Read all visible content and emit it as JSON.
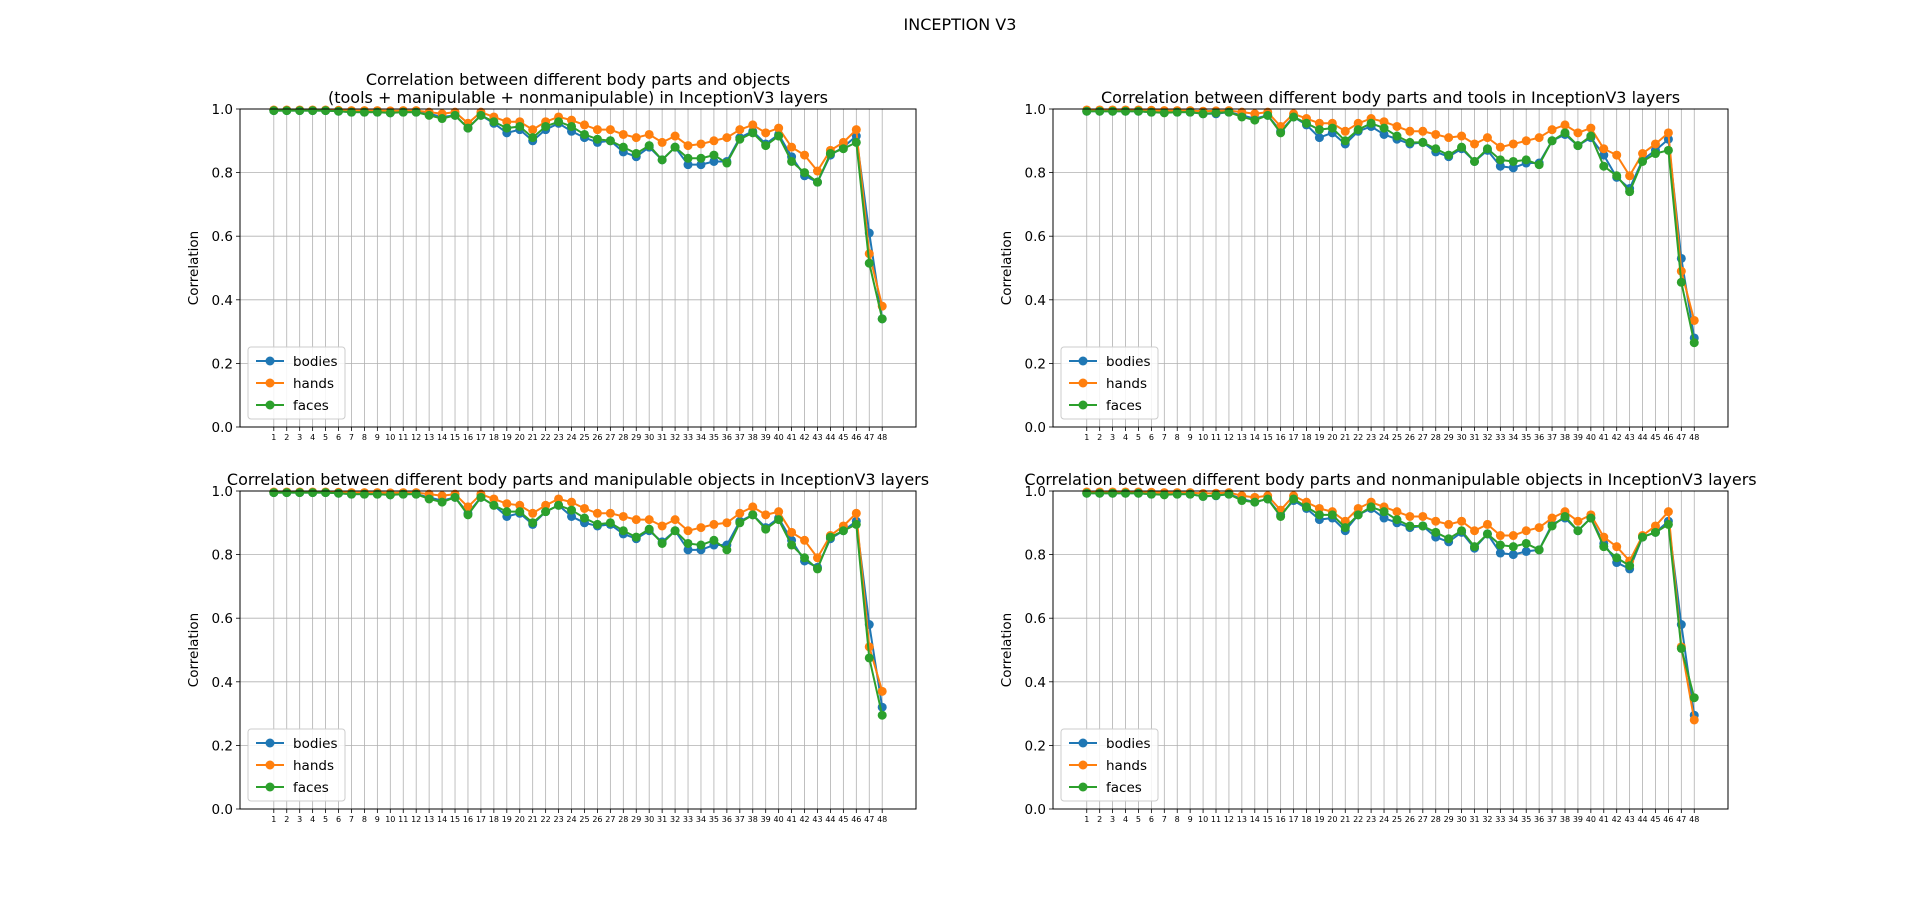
{
  "figure": {
    "title": "INCEPTION V3"
  },
  "chart_data": [
    {
      "type": "line",
      "title": "Correlation between different body parts and objects\n(tools + manipulable + nonmanipulable) in InceptionV3 layers",
      "xlabel": "",
      "ylabel": "Correlation",
      "ylim": [
        0,
        1
      ],
      "yticks": [
        "0.0",
        "0.2",
        "0.4",
        "0.6",
        "0.8",
        "1.0"
      ],
      "x": [
        "1",
        "2",
        "3",
        "4",
        "5",
        "6",
        "7",
        "8",
        "9",
        "10",
        "11",
        "12",
        "13",
        "14",
        "15",
        "16",
        "17",
        "18",
        "19",
        "20",
        "21",
        "22",
        "23",
        "24",
        "25",
        "26",
        "27",
        "28",
        "29",
        "30",
        "31",
        "32",
        "33",
        "34",
        "35",
        "36",
        "37",
        "38",
        "39",
        "40",
        "41",
        "42",
        "43",
        "44",
        "45",
        "46",
        "47",
        "48"
      ],
      "grid": true,
      "legend": "lower left",
      "series": [
        {
          "name": "bodies",
          "color": "#1f77b4",
          "values": [
            0.995,
            0.995,
            0.995,
            0.995,
            0.995,
            0.993,
            0.99,
            0.99,
            0.99,
            0.988,
            0.99,
            0.99,
            0.985,
            0.975,
            0.98,
            0.94,
            0.98,
            0.955,
            0.925,
            0.935,
            0.9,
            0.935,
            0.955,
            0.93,
            0.91,
            0.895,
            0.9,
            0.865,
            0.85,
            0.88,
            0.84,
            0.88,
            0.825,
            0.825,
            0.835,
            0.835,
            0.91,
            0.93,
            0.89,
            0.92,
            0.85,
            0.79,
            0.77,
            0.855,
            0.88,
            0.915,
            0.61,
            0.34
          ]
        },
        {
          "name": "hands",
          "color": "#ff7f0e",
          "values": [
            0.997,
            0.997,
            0.997,
            0.997,
            0.997,
            0.996,
            0.995,
            0.995,
            0.995,
            0.994,
            0.995,
            0.995,
            0.99,
            0.985,
            0.99,
            0.955,
            0.99,
            0.975,
            0.96,
            0.96,
            0.935,
            0.96,
            0.975,
            0.965,
            0.95,
            0.935,
            0.935,
            0.92,
            0.91,
            0.92,
            0.895,
            0.915,
            0.885,
            0.89,
            0.9,
            0.91,
            0.935,
            0.95,
            0.925,
            0.94,
            0.88,
            0.855,
            0.805,
            0.87,
            0.895,
            0.935,
            0.545,
            0.38
          ]
        },
        {
          "name": "faces",
          "color": "#2ca02c",
          "values": [
            0.995,
            0.995,
            0.995,
            0.995,
            0.995,
            0.993,
            0.99,
            0.99,
            0.99,
            0.988,
            0.99,
            0.99,
            0.98,
            0.97,
            0.98,
            0.94,
            0.98,
            0.96,
            0.94,
            0.945,
            0.91,
            0.945,
            0.96,
            0.945,
            0.92,
            0.905,
            0.9,
            0.88,
            0.86,
            0.885,
            0.84,
            0.88,
            0.845,
            0.845,
            0.855,
            0.83,
            0.905,
            0.925,
            0.885,
            0.915,
            0.835,
            0.8,
            0.77,
            0.86,
            0.875,
            0.895,
            0.515,
            0.34
          ]
        }
      ]
    },
    {
      "type": "line",
      "title": "Correlation between different body parts and tools in InceptionV3 layers",
      "xlabel": "",
      "ylabel": "Correlation",
      "ylim": [
        0,
        1
      ],
      "yticks": [
        "0.0",
        "0.2",
        "0.4",
        "0.6",
        "0.8",
        "1.0"
      ],
      "x": [
        "1",
        "2",
        "3",
        "4",
        "5",
        "6",
        "7",
        "8",
        "9",
        "10",
        "11",
        "12",
        "13",
        "14",
        "15",
        "16",
        "17",
        "18",
        "19",
        "20",
        "21",
        "22",
        "23",
        "24",
        "25",
        "26",
        "27",
        "28",
        "29",
        "30",
        "31",
        "32",
        "33",
        "34",
        "35",
        "36",
        "37",
        "38",
        "39",
        "40",
        "41",
        "42",
        "43",
        "44",
        "45",
        "46",
        "47",
        "48"
      ],
      "grid": true,
      "legend": "lower left",
      "series": [
        {
          "name": "bodies",
          "color": "#1f77b4",
          "values": [
            0.993,
            0.993,
            0.993,
            0.993,
            0.993,
            0.99,
            0.99,
            0.99,
            0.99,
            0.985,
            0.985,
            0.99,
            0.98,
            0.97,
            0.98,
            0.93,
            0.975,
            0.95,
            0.91,
            0.925,
            0.89,
            0.93,
            0.945,
            0.92,
            0.905,
            0.89,
            0.895,
            0.865,
            0.85,
            0.875,
            0.835,
            0.87,
            0.82,
            0.815,
            0.83,
            0.83,
            0.9,
            0.92,
            0.885,
            0.91,
            0.855,
            0.785,
            0.75,
            0.84,
            0.87,
            0.905,
            0.53,
            0.28
          ]
        },
        {
          "name": "hands",
          "color": "#ff7f0e",
          "values": [
            0.997,
            0.997,
            0.997,
            0.997,
            0.997,
            0.996,
            0.995,
            0.995,
            0.995,
            0.993,
            0.994,
            0.995,
            0.99,
            0.985,
            0.99,
            0.945,
            0.985,
            0.97,
            0.955,
            0.955,
            0.93,
            0.955,
            0.97,
            0.96,
            0.945,
            0.93,
            0.93,
            0.92,
            0.91,
            0.915,
            0.89,
            0.91,
            0.88,
            0.89,
            0.9,
            0.91,
            0.935,
            0.95,
            0.925,
            0.94,
            0.875,
            0.855,
            0.79,
            0.86,
            0.89,
            0.925,
            0.49,
            0.335
          ]
        },
        {
          "name": "faces",
          "color": "#2ca02c",
          "values": [
            0.993,
            0.993,
            0.993,
            0.993,
            0.993,
            0.99,
            0.988,
            0.99,
            0.99,
            0.985,
            0.988,
            0.99,
            0.975,
            0.965,
            0.98,
            0.925,
            0.975,
            0.955,
            0.935,
            0.94,
            0.9,
            0.935,
            0.955,
            0.94,
            0.915,
            0.895,
            0.895,
            0.875,
            0.855,
            0.88,
            0.835,
            0.875,
            0.84,
            0.835,
            0.84,
            0.825,
            0.9,
            0.925,
            0.885,
            0.915,
            0.82,
            0.79,
            0.74,
            0.835,
            0.86,
            0.87,
            0.455,
            0.265
          ]
        }
      ]
    },
    {
      "type": "line",
      "title": "Correlation between different body parts and manipulable objects in InceptionV3 layers",
      "xlabel": "",
      "ylabel": "Correlation",
      "ylim": [
        0,
        1
      ],
      "yticks": [
        "0.0",
        "0.2",
        "0.4",
        "0.6",
        "0.8",
        "1.0"
      ],
      "x": [
        "1",
        "2",
        "3",
        "4",
        "5",
        "6",
        "7",
        "8",
        "9",
        "10",
        "11",
        "12",
        "13",
        "14",
        "15",
        "16",
        "17",
        "18",
        "19",
        "20",
        "21",
        "22",
        "23",
        "24",
        "25",
        "26",
        "27",
        "28",
        "29",
        "30",
        "31",
        "32",
        "33",
        "34",
        "35",
        "36",
        "37",
        "38",
        "39",
        "40",
        "41",
        "42",
        "43",
        "44",
        "45",
        "46",
        "47",
        "48"
      ],
      "grid": true,
      "legend": "lower left",
      "series": [
        {
          "name": "bodies",
          "color": "#1f77b4",
          "values": [
            0.995,
            0.995,
            0.995,
            0.995,
            0.995,
            0.993,
            0.99,
            0.99,
            0.99,
            0.988,
            0.99,
            0.99,
            0.98,
            0.97,
            0.98,
            0.93,
            0.98,
            0.955,
            0.92,
            0.93,
            0.895,
            0.935,
            0.955,
            0.92,
            0.9,
            0.89,
            0.895,
            0.865,
            0.85,
            0.875,
            0.84,
            0.875,
            0.815,
            0.815,
            0.83,
            0.83,
            0.905,
            0.925,
            0.885,
            0.915,
            0.845,
            0.78,
            0.76,
            0.85,
            0.875,
            0.905,
            0.58,
            0.32
          ]
        },
        {
          "name": "hands",
          "color": "#ff7f0e",
          "values": [
            0.997,
            0.997,
            0.997,
            0.997,
            0.997,
            0.996,
            0.995,
            0.995,
            0.995,
            0.994,
            0.995,
            0.995,
            0.99,
            0.985,
            0.99,
            0.95,
            0.99,
            0.975,
            0.96,
            0.955,
            0.93,
            0.955,
            0.975,
            0.965,
            0.945,
            0.93,
            0.93,
            0.92,
            0.91,
            0.91,
            0.89,
            0.91,
            0.875,
            0.885,
            0.895,
            0.9,
            0.93,
            0.95,
            0.925,
            0.935,
            0.87,
            0.845,
            0.79,
            0.86,
            0.89,
            0.93,
            0.51,
            0.37
          ]
        },
        {
          "name": "faces",
          "color": "#2ca02c",
          "values": [
            0.995,
            0.995,
            0.995,
            0.995,
            0.995,
            0.993,
            0.99,
            0.99,
            0.99,
            0.988,
            0.99,
            0.99,
            0.975,
            0.965,
            0.98,
            0.925,
            0.98,
            0.955,
            0.935,
            0.935,
            0.9,
            0.935,
            0.955,
            0.94,
            0.915,
            0.895,
            0.9,
            0.875,
            0.855,
            0.88,
            0.835,
            0.875,
            0.835,
            0.83,
            0.845,
            0.815,
            0.9,
            0.925,
            0.88,
            0.91,
            0.83,
            0.79,
            0.755,
            0.855,
            0.875,
            0.895,
            0.475,
            0.295
          ]
        }
      ]
    },
    {
      "type": "line",
      "title": "Correlation between different body parts and nonmanipulable objects in InceptionV3 layers",
      "xlabel": "",
      "ylabel": "Correlation",
      "ylim": [
        0,
        1
      ],
      "yticks": [
        "0.0",
        "0.2",
        "0.4",
        "0.6",
        "0.8",
        "1.0"
      ],
      "x": [
        "1",
        "2",
        "3",
        "4",
        "5",
        "6",
        "7",
        "8",
        "9",
        "10",
        "11",
        "12",
        "13",
        "14",
        "15",
        "16",
        "17",
        "18",
        "19",
        "20",
        "21",
        "22",
        "23",
        "24",
        "25",
        "26",
        "27",
        "28",
        "29",
        "30",
        "31",
        "32",
        "33",
        "34",
        "35",
        "36",
        "37",
        "38",
        "39",
        "40",
        "41",
        "42",
        "43",
        "44",
        "45",
        "46",
        "47",
        "48"
      ],
      "grid": true,
      "legend": "lower left",
      "series": [
        {
          "name": "bodies",
          "color": "#1f77b4",
          "values": [
            0.993,
            0.993,
            0.993,
            0.993,
            0.993,
            0.99,
            0.99,
            0.99,
            0.99,
            0.983,
            0.985,
            0.99,
            0.975,
            0.965,
            0.975,
            0.925,
            0.97,
            0.945,
            0.91,
            0.915,
            0.875,
            0.925,
            0.945,
            0.915,
            0.9,
            0.885,
            0.89,
            0.855,
            0.84,
            0.87,
            0.82,
            0.865,
            0.805,
            0.8,
            0.81,
            0.815,
            0.895,
            0.915,
            0.875,
            0.915,
            0.835,
            0.775,
            0.755,
            0.855,
            0.87,
            0.905,
            0.58,
            0.295
          ]
        },
        {
          "name": "hands",
          "color": "#ff7f0e",
          "values": [
            0.997,
            0.997,
            0.997,
            0.997,
            0.997,
            0.996,
            0.995,
            0.995,
            0.995,
            0.992,
            0.993,
            0.995,
            0.985,
            0.98,
            0.985,
            0.94,
            0.985,
            0.965,
            0.945,
            0.935,
            0.905,
            0.945,
            0.965,
            0.95,
            0.935,
            0.92,
            0.92,
            0.905,
            0.895,
            0.905,
            0.875,
            0.895,
            0.86,
            0.86,
            0.875,
            0.885,
            0.915,
            0.935,
            0.905,
            0.925,
            0.855,
            0.825,
            0.78,
            0.86,
            0.89,
            0.935,
            0.51,
            0.28
          ]
        },
        {
          "name": "faces",
          "color": "#2ca02c",
          "values": [
            0.993,
            0.993,
            0.993,
            0.993,
            0.993,
            0.99,
            0.988,
            0.99,
            0.99,
            0.983,
            0.986,
            0.99,
            0.97,
            0.965,
            0.975,
            0.92,
            0.975,
            0.95,
            0.925,
            0.925,
            0.885,
            0.925,
            0.95,
            0.935,
            0.91,
            0.89,
            0.89,
            0.87,
            0.85,
            0.875,
            0.825,
            0.865,
            0.83,
            0.825,
            0.835,
            0.815,
            0.89,
            0.92,
            0.875,
            0.915,
            0.825,
            0.79,
            0.765,
            0.855,
            0.87,
            0.895,
            0.505,
            0.35
          ]
        }
      ]
    }
  ]
}
